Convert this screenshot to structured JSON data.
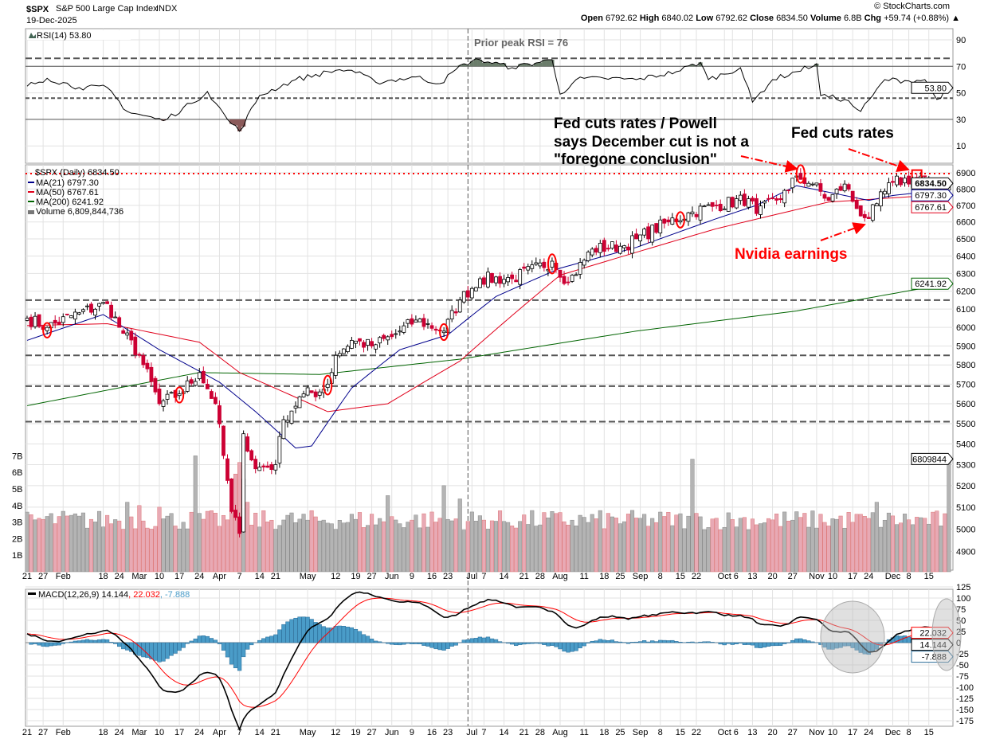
{
  "header": {
    "symbol": "$SPX",
    "name": "S&P 500 Large Cap Index",
    "exchange": "INDX",
    "date": "19-Dec-2025",
    "copyright": "© StockCharts.com",
    "open_label": "Open",
    "open": "6792.62",
    "high_label": "High",
    "high": "6840.02",
    "low_label": "Low",
    "low": "6792.62",
    "close_label": "Close",
    "close": "6834.50",
    "volume_label": "Volume",
    "volume": "6.8B",
    "chg_label": "Chg",
    "chg": "+59.74 (+0.88%)"
  },
  "rsi": {
    "legend": "RSI(14) 53.80",
    "current": "53.80",
    "axis": [
      "90",
      "70",
      "50",
      "30",
      "10"
    ],
    "annotation": "Prior peak RSI = 76"
  },
  "price": {
    "legend": "$SPX (Daily) 6834.50",
    "ma21": "MA(21) 6797.30",
    "ma50": "MA(50) 6767.61",
    "ma200": "MA(200) 6241.92",
    "volume": "Volume 6,809,844,736",
    "current_label": "6834.50",
    "ma21_label": "6797.30",
    "ma50_label": "6767.61",
    "ma200_label": "6241.92",
    "volume_label": "6809844",
    "axis": [
      "6900",
      "6800",
      "6700",
      "6600",
      "6500",
      "6400",
      "6300",
      "6200",
      "6100",
      "6000",
      "5900",
      "5800",
      "5700",
      "5600",
      "5500",
      "5400",
      "5300",
      "5200",
      "5100",
      "5000",
      "4900"
    ],
    "vol_axis": [
      "1B",
      "2B",
      "3B",
      "4B",
      "5B",
      "6B",
      "7B"
    ]
  },
  "annotations": {
    "fed1": [
      "Fed cuts rates / Powell",
      "says December cut is not a",
      "\"foregone conclusion\""
    ],
    "fed2": "Fed cuts rates",
    "nvidia": "Nvidia earnings"
  },
  "macd": {
    "legend_main": "MACD(12,26,9) 14.144",
    "legend_signal": ", 22.032",
    "legend_hist": ", -7.888",
    "macd_label": "14.144",
    "signal_label": "22.032",
    "hist_label": "-7.888",
    "axis": [
      "125",
      "100",
      "75",
      "50",
      "25",
      "0",
      "-25",
      "-50",
      "-75",
      "-100",
      "-125",
      "-150",
      "-175"
    ]
  },
  "colors": {
    "up": "#000000",
    "down": "#cc0033",
    "ma21": "#00008b",
    "ma50": "#e0001b",
    "ma200": "#006400",
    "vol_up": "#b4b4b4",
    "vol_down": "#e8a9b4",
    "macd": "#000000",
    "signal": "#ff0000",
    "hist": "#4a9cc8",
    "annotation": "#ff0000"
  },
  "chart_data": {
    "type": "candlestick",
    "title": "$SPX S&P 500 Large Cap Index",
    "scale": "log",
    "ylim": [
      4850,
      6950
    ],
    "trading_days": 231,
    "x_ticks": [
      {
        "label": "21",
        "day": 0
      },
      {
        "label": "27",
        "day": 4
      },
      {
        "label": "Feb",
        "day": 9
      },
      {
        "label": "18",
        "day": 19
      },
      {
        "label": "24",
        "day": 23
      },
      {
        "label": "Mar",
        "day": 28
      },
      {
        "label": "10",
        "day": 33
      },
      {
        "label": "17",
        "day": 38
      },
      {
        "label": "24",
        "day": 43
      },
      {
        "label": "Apr",
        "day": 48
      },
      {
        "label": "7",
        "day": 53
      },
      {
        "label": "14",
        "day": 58
      },
      {
        "label": "21",
        "day": 62
      },
      {
        "label": "May",
        "day": 70
      },
      {
        "label": "12",
        "day": 77
      },
      {
        "label": "19",
        "day": 82
      },
      {
        "label": "27",
        "day": 86
      },
      {
        "label": "Jun",
        "day": 91
      },
      {
        "label": "9",
        "day": 96
      },
      {
        "label": "16",
        "day": 101
      },
      {
        "label": "23",
        "day": 105
      },
      {
        "label": "Jul",
        "day": 111
      },
      {
        "label": "7",
        "day": 114
      },
      {
        "label": "14",
        "day": 119
      },
      {
        "label": "21",
        "day": 124
      },
      {
        "label": "28",
        "day": 128
      },
      {
        "label": "Aug",
        "day": 133
      },
      {
        "label": "11",
        "day": 139
      },
      {
        "label": "18",
        "day": 144
      },
      {
        "label": "25",
        "day": 148
      },
      {
        "label": "Sep",
        "day": 153
      },
      {
        "label": "8",
        "day": 158
      },
      {
        "label": "15",
        "day": 163
      },
      {
        "label": "22",
        "day": 167
      },
      {
        "label": "Oct",
        "day": 174
      },
      {
        "label": "6",
        "day": 176
      },
      {
        "label": "13",
        "day": 181
      },
      {
        "label": "20",
        "day": 186
      },
      {
        "label": "27",
        "day": 191
      },
      {
        "label": "Nov",
        "day": 197
      },
      {
        "label": "10",
        "day": 201
      },
      {
        "label": "17",
        "day": 206
      },
      {
        "label": "24",
        "day": 210
      },
      {
        "label": "Dec",
        "day": 216
      },
      {
        "label": "8",
        "day": 220
      },
      {
        "label": "15",
        "day": 225
      }
    ],
    "close_anchors": [
      [
        0,
        6050
      ],
      [
        5,
        6000
      ],
      [
        13,
        6080
      ],
      [
        20,
        6130
      ],
      [
        23,
        6000
      ],
      [
        28,
        5850
      ],
      [
        33,
        5600
      ],
      [
        38,
        5650
      ],
      [
        43,
        5760
      ],
      [
        47,
        5600
      ],
      [
        51,
        5080
      ],
      [
        53,
        4980
      ],
      [
        54,
        5450
      ],
      [
        57,
        5280
      ],
      [
        62,
        5300
      ],
      [
        64,
        5520
      ],
      [
        69,
        5650
      ],
      [
        73,
        5660
      ],
      [
        75,
        5700
      ],
      [
        77,
        5850
      ],
      [
        81,
        5930
      ],
      [
        86,
        5900
      ],
      [
        91,
        5950
      ],
      [
        97,
        6040
      ],
      [
        104,
        5980
      ],
      [
        108,
        6150
      ],
      [
        113,
        6270
      ],
      [
        121,
        6270
      ],
      [
        131,
        6370
      ],
      [
        135,
        6250
      ],
      [
        141,
        6440
      ],
      [
        149,
        6460
      ],
      [
        152,
        6500
      ],
      [
        160,
        6600
      ],
      [
        166,
        6660
      ],
      [
        172,
        6700
      ],
      [
        180,
        6740
      ],
      [
        182,
        6650
      ],
      [
        190,
        6790
      ],
      [
        192,
        6880
      ],
      [
        196,
        6830
      ],
      [
        200,
        6730
      ],
      [
        204,
        6830
      ],
      [
        207,
        6680
      ],
      [
        210,
        6620
      ],
      [
        212,
        6710
      ],
      [
        216,
        6840
      ],
      [
        222,
        6870
      ],
      [
        224,
        6880
      ],
      [
        227,
        6760
      ],
      [
        230,
        6834.5
      ]
    ],
    "last_candle": {
      "open": 6792.62,
      "high": 6840.02,
      "low": 6792.62,
      "close": 6834.5
    },
    "ma21_anchors": [
      [
        0,
        5930
      ],
      [
        19,
        6070
      ],
      [
        33,
        5880
      ],
      [
        48,
        5710
      ],
      [
        57,
        5560
      ],
      [
        67,
        5380
      ],
      [
        71,
        5390
      ],
      [
        81,
        5680
      ],
      [
        93,
        5880
      ],
      [
        105,
        5960
      ],
      [
        117,
        6170
      ],
      [
        133,
        6330
      ],
      [
        152,
        6450
      ],
      [
        172,
        6620
      ],
      [
        182,
        6700
      ],
      [
        192,
        6820
      ],
      [
        202,
        6770
      ],
      [
        210,
        6730
      ],
      [
        216,
        6760
      ],
      [
        230,
        6797.3
      ]
    ],
    "ma50_anchors": [
      [
        0,
        6010
      ],
      [
        20,
        6020
      ],
      [
        43,
        5920
      ],
      [
        53,
        5760
      ],
      [
        75,
        5560
      ],
      [
        90,
        5600
      ],
      [
        108,
        5820
      ],
      [
        133,
        6290
      ],
      [
        172,
        6560
      ],
      [
        200,
        6720
      ],
      [
        230,
        6767.61
      ]
    ],
    "ma200_anchors": [
      [
        0,
        5590
      ],
      [
        43,
        5760
      ],
      [
        73,
        5750
      ],
      [
        108,
        5830
      ],
      [
        152,
        5980
      ],
      [
        192,
        6090
      ],
      [
        230,
        6241.92
      ]
    ],
    "horizontal_levels": [
      6150,
      5850,
      5690,
      5510
    ],
    "resistance_dotted": 6895,
    "volume_base_billions": 3.0,
    "volume_spikes_billions": [
      [
        25,
        4.2
      ],
      [
        28,
        4.0
      ],
      [
        33,
        3.9
      ],
      [
        42,
        7.0
      ],
      [
        52,
        5.9
      ],
      [
        53,
        6.6
      ],
      [
        54,
        5.6
      ],
      [
        55,
        4.2
      ],
      [
        90,
        4.6
      ],
      [
        104,
        5.2
      ],
      [
        108,
        4.4
      ],
      [
        166,
        6.8
      ],
      [
        212,
        4.2
      ],
      [
        230,
        6.81
      ]
    ],
    "rsi_anchors": [
      [
        0,
        55
      ],
      [
        5,
        61
      ],
      [
        13,
        54
      ],
      [
        20,
        54
      ],
      [
        25,
        36
      ],
      [
        34,
        29
      ],
      [
        41,
        42
      ],
      [
        45,
        51
      ],
      [
        50,
        30
      ],
      [
        53,
        21
      ],
      [
        58,
        48
      ],
      [
        67,
        60
      ],
      [
        77,
        67
      ],
      [
        81,
        67
      ],
      [
        87,
        58
      ],
      [
        97,
        62
      ],
      [
        103,
        57
      ],
      [
        109,
        72
      ],
      [
        113,
        75
      ],
      [
        121,
        69
      ],
      [
        131,
        75
      ],
      [
        133,
        49
      ],
      [
        137,
        60
      ],
      [
        144,
        61
      ],
      [
        152,
        60
      ],
      [
        162,
        66
      ],
      [
        168,
        73
      ],
      [
        170,
        60
      ],
      [
        178,
        69
      ],
      [
        181,
        43
      ],
      [
        186,
        60
      ],
      [
        192,
        66
      ],
      [
        197,
        72
      ],
      [
        198,
        48
      ],
      [
        204,
        45
      ],
      [
        208,
        36
      ],
      [
        211,
        48
      ],
      [
        214,
        60
      ],
      [
        220,
        59
      ],
      [
        224,
        60
      ],
      [
        227,
        45
      ],
      [
        230,
        53.8
      ]
    ],
    "rsi_levels": {
      "dashed_upper": 76,
      "dashed_lower": 46,
      "solid": [
        70,
        30
      ]
    },
    "highlighted_days": [
      5,
      38,
      75,
      104,
      131,
      163,
      193,
      222
    ],
    "event_marker_day": 110,
    "macd_params": [
      12,
      26,
      9
    ],
    "macd_last": {
      "macd": 14.144,
      "signal": 22.032,
      "histogram": -7.888
    }
  }
}
